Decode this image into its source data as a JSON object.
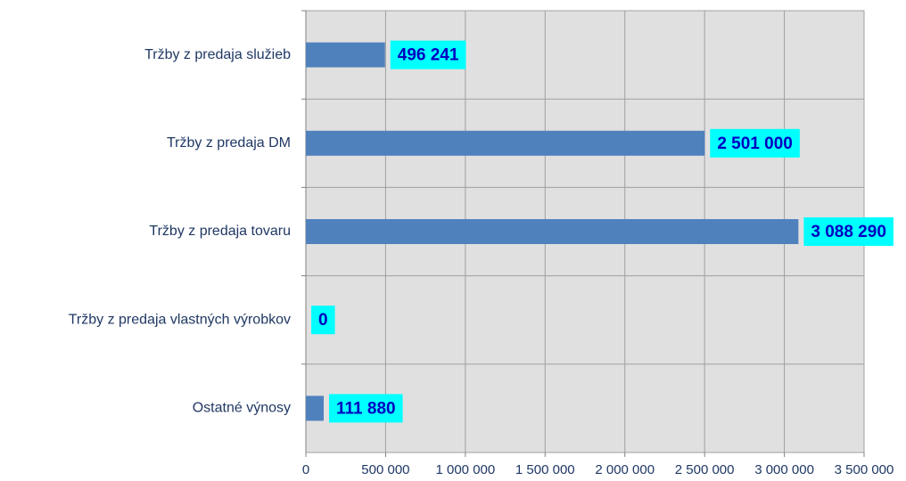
{
  "chart_data": {
    "type": "barh",
    "categories": [
      "Tržby z predaja služieb",
      "Tržby z predaja DM",
      "Tržby z predaja tovaru",
      "Tržby z predaja vlastných výrobkov",
      "Ostatné výnosy"
    ],
    "values": [
      496241,
      2501000,
      3088290,
      0,
      111880
    ],
    "value_labels": [
      "496 241",
      "2 501 000",
      "3 088 290",
      "0",
      "111 880"
    ],
    "color": "#4f81bd",
    "label_box_color": "#00ffff",
    "xlim": [
      0,
      3500000
    ],
    "xticks": [
      0,
      {
        "value": 500000,
        "label": "500 000"
      },
      {
        "value": 1000000,
        "label": "1 000 000"
      },
      {
        "value": 1500000,
        "label": "1 500 000"
      },
      {
        "value": 2000000,
        "label": "2 000 000"
      },
      {
        "value": 2500000,
        "label": "2 500 000"
      },
      {
        "value": 3000000,
        "label": "3 000 000"
      },
      {
        "value": 3500000,
        "label": "3 500 000"
      }
    ],
    "grid": true
  }
}
